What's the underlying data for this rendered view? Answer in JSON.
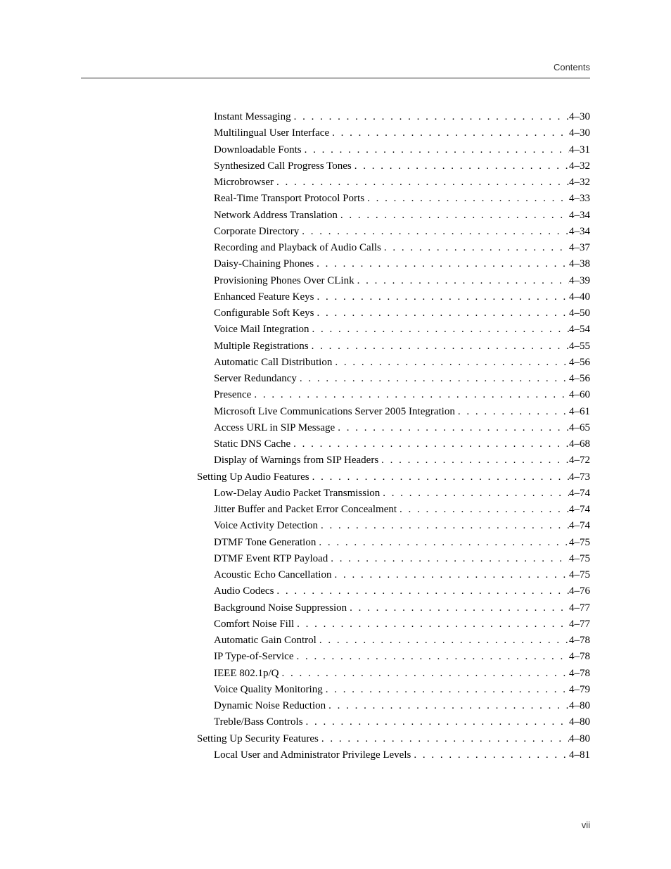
{
  "header_label": "Contents",
  "footer_page": "vii",
  "entries": [
    {
      "level": 1,
      "title": "Instant Messaging",
      "page": "4–30"
    },
    {
      "level": 1,
      "title": "Multilingual User Interface",
      "page": "4–30"
    },
    {
      "level": 1,
      "title": "Downloadable Fonts",
      "page": "4–31"
    },
    {
      "level": 1,
      "title": "Synthesized Call Progress Tones",
      "page": "4–32"
    },
    {
      "level": 1,
      "title": "Microbrowser",
      "page": "4–32"
    },
    {
      "level": 1,
      "title": "Real-Time Transport Protocol Ports",
      "page": "4–33"
    },
    {
      "level": 1,
      "title": "Network Address Translation",
      "page": "4–34"
    },
    {
      "level": 1,
      "title": "Corporate Directory",
      "page": "4–34"
    },
    {
      "level": 1,
      "title": "Recording and Playback of Audio Calls",
      "page": "4–37"
    },
    {
      "level": 1,
      "title": "Daisy-Chaining Phones",
      "page": "4–38"
    },
    {
      "level": 1,
      "title": "Provisioning Phones Over CLink",
      "page": "4–39"
    },
    {
      "level": 1,
      "title": "Enhanced Feature Keys",
      "page": "4–40"
    },
    {
      "level": 1,
      "title": "Configurable Soft Keys",
      "page": "4–50"
    },
    {
      "level": 1,
      "title": "Voice Mail Integration",
      "page": "4–54"
    },
    {
      "level": 1,
      "title": "Multiple Registrations",
      "page": "4–55"
    },
    {
      "level": 1,
      "title": "Automatic Call Distribution",
      "page": "4–56"
    },
    {
      "level": 1,
      "title": "Server Redundancy",
      "page": "4–56"
    },
    {
      "level": 1,
      "title": "Presence",
      "page": "4–60"
    },
    {
      "level": 1,
      "title": "Microsoft Live Communications Server 2005 Integration",
      "page": "4–61"
    },
    {
      "level": 1,
      "title": "Access URL in SIP Message",
      "page": "4–65"
    },
    {
      "level": 1,
      "title": "Static DNS Cache",
      "page": "4–68"
    },
    {
      "level": 1,
      "title": "Display of Warnings from SIP Headers",
      "page": "4–72"
    },
    {
      "level": 0,
      "title": "Setting Up Audio Features",
      "page": "4–73"
    },
    {
      "level": 1,
      "title": "Low-Delay Audio Packet Transmission",
      "page": "4–74"
    },
    {
      "level": 1,
      "title": "Jitter Buffer and Packet Error Concealment",
      "page": "4–74"
    },
    {
      "level": 1,
      "title": "Voice Activity Detection",
      "page": "4–74"
    },
    {
      "level": 1,
      "title": "DTMF Tone Generation",
      "page": "4–75"
    },
    {
      "level": 1,
      "title": "DTMF Event RTP Payload",
      "page": "4–75"
    },
    {
      "level": 1,
      "title": "Acoustic Echo Cancellation",
      "page": "4–75"
    },
    {
      "level": 1,
      "title": "Audio Codecs",
      "page": "4–76"
    },
    {
      "level": 1,
      "title": "Background Noise Suppression",
      "page": "4–77"
    },
    {
      "level": 1,
      "title": "Comfort Noise Fill",
      "page": "4–77"
    },
    {
      "level": 1,
      "title": "Automatic Gain Control",
      "page": "4–78"
    },
    {
      "level": 1,
      "title": "IP Type-of-Service",
      "page": "4–78"
    },
    {
      "level": 1,
      "title": "IEEE 802.1p/Q",
      "page": "4–78"
    },
    {
      "level": 1,
      "title": "Voice Quality Monitoring",
      "page": "4–79"
    },
    {
      "level": 1,
      "title": "Dynamic Noise Reduction",
      "page": "4–80"
    },
    {
      "level": 1,
      "title": "Treble/Bass Controls",
      "page": "4–80"
    },
    {
      "level": 0,
      "title": "Setting Up Security Features",
      "page": "4–80"
    },
    {
      "level": 1,
      "title": "Local User and Administrator Privilege Levels",
      "page": "4–81"
    }
  ]
}
